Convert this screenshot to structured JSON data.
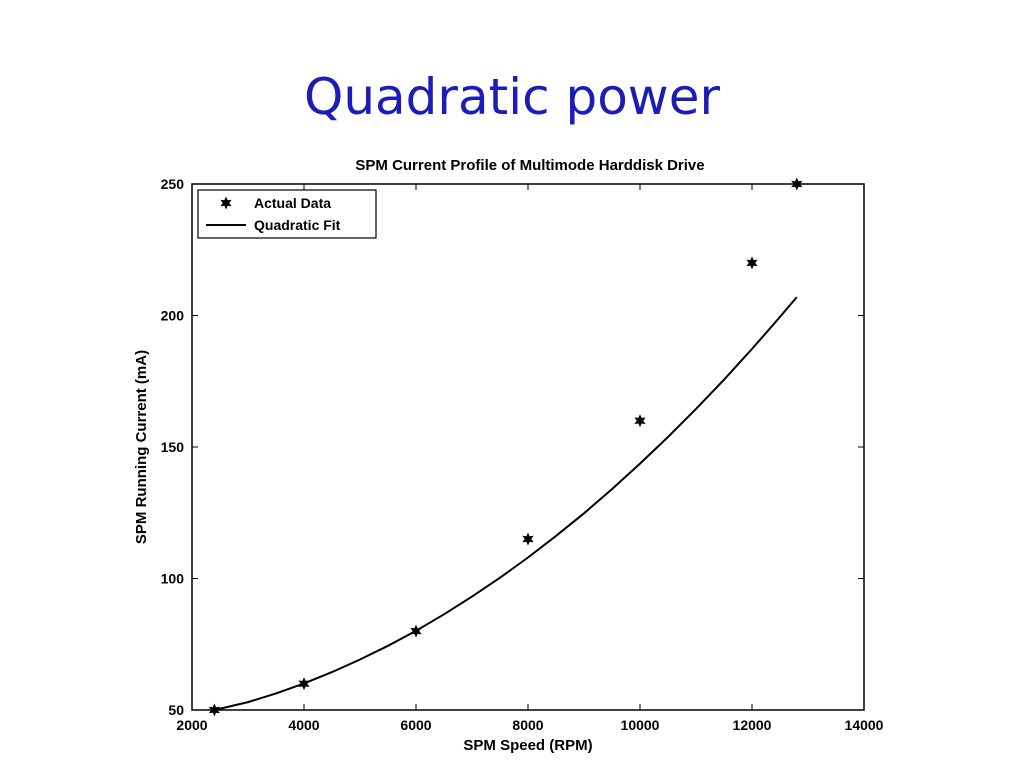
{
  "slide": {
    "title": "Quadratic power"
  },
  "chart_data": {
    "type": "line",
    "title": "SPM Current Profile of Multimode Harddisk Drive",
    "xlabel": "SPM Speed (RPM)",
    "ylabel": "SPM Running Current (mA)",
    "xlim": [
      2000,
      14000
    ],
    "ylim": [
      50,
      250
    ],
    "x_ticks": [
      2000,
      4000,
      6000,
      8000,
      10000,
      12000,
      14000
    ],
    "y_ticks": [
      50,
      100,
      150,
      200,
      250
    ],
    "grid": false,
    "legend_position": "top-left",
    "series": [
      {
        "name": "Actual Data",
        "kind": "markers",
        "marker": "star",
        "x": [
          2400,
          4000,
          6000,
          8000,
          10000,
          12000,
          12800
        ],
        "y": [
          50,
          60,
          80,
          115,
          160,
          220,
          250
        ]
      },
      {
        "name": "Quadratic Fit",
        "kind": "line",
        "x": [
          2400,
          3000,
          3500,
          4000,
          4500,
          5000,
          5500,
          6000,
          6500,
          7000,
          7500,
          8000,
          8500,
          9000,
          9500,
          10000,
          10500,
          11000,
          11500,
          12000,
          12400,
          12800
        ],
        "y": [
          50.0,
          53.0,
          56.3,
          60.1,
          64.4,
          69.2,
          74.4,
          80.1,
          86.4,
          93.1,
          100.3,
          108.0,
          116.2,
          124.8,
          134.0,
          143.7,
          153.8,
          164.5,
          175.6,
          187.3,
          197.0,
          207.0
        ]
      }
    ]
  },
  "colors": {
    "title": "#1c1cb8",
    "axes": "#000000",
    "series": "#000000"
  }
}
